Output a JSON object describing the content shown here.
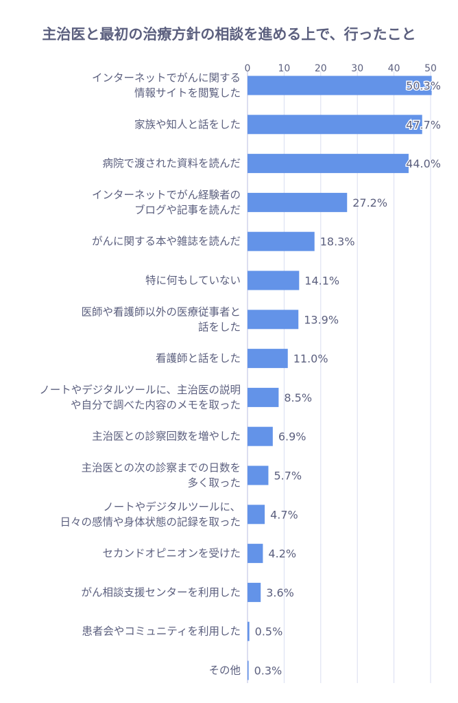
{
  "chart_data": {
    "type": "bar",
    "orientation": "horizontal",
    "title": "主治医と最初の治療方針の相談を進める上で、行ったこと",
    "categories": [
      [
        "インターネットでがんに関する",
        "情報サイトを閲覧した"
      ],
      [
        "家族や知人と話をした"
      ],
      [
        "病院で渡された資料を読んだ"
      ],
      [
        "インターネットでがん経験者の",
        "ブログや記事を読んだ"
      ],
      [
        "がんに関する本や雑誌を読んだ"
      ],
      [
        "特に何もしていない"
      ],
      [
        "医師や看護師以外の医療従事者と",
        "話をした"
      ],
      [
        "看護師と話をした"
      ],
      [
        "ノートやデジタルツールに、主治医の説明",
        "や自分で調べた内容のメモを取った"
      ],
      [
        "主治医との診察回数を増やした"
      ],
      [
        "主治医との次の診察までの日数を",
        "多く取った"
      ],
      [
        "ノートやデジタルツールに、",
        "日々の感情や身体状態の記録を取った"
      ],
      [
        "セカンドオピニオンを受けた"
      ],
      [
        "がん相談支援センターを利用した"
      ],
      [
        "患者会やコミュニティを利用した"
      ],
      [
        "その他"
      ]
    ],
    "values": [
      50.3,
      47.7,
      44.0,
      27.2,
      18.3,
      14.1,
      13.9,
      11.0,
      8.5,
      6.9,
      5.7,
      4.7,
      4.2,
      3.6,
      0.5,
      0.3
    ],
    "value_labels": [
      "50.3%",
      "47.7%",
      "44.0%",
      "27.2%",
      "18.3%",
      "14.1%",
      "13.9%",
      "11.0%",
      "8.5%",
      "6.9%",
      "5.7%",
      "4.7%",
      "4.2%",
      "3.6%",
      "0.5%",
      "0.3%"
    ],
    "xlim": [
      0,
      50
    ],
    "xticks": [
      "0",
      "10",
      "20",
      "30",
      "40",
      "50"
    ],
    "xtick_values": [
      0,
      10,
      20,
      30,
      40,
      50
    ],
    "xaxis_position": "top",
    "grid": true,
    "bar_color": "#6393e8",
    "grid_color": "#d9ddf0",
    "xlabel": "",
    "ylabel": ""
  }
}
